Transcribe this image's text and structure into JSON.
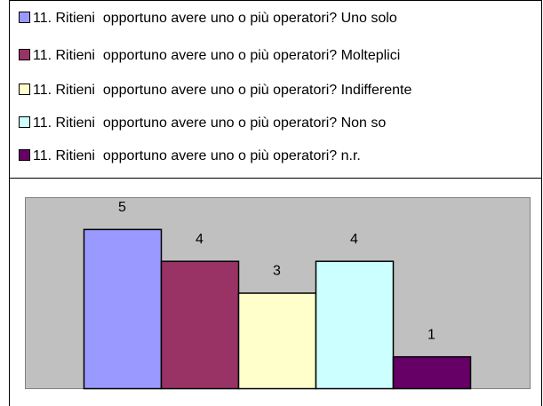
{
  "chart_data": {
    "type": "bar",
    "series": [
      {
        "name": "11. Ritieni  opportuno avere uno o più operatori? Uno solo",
        "color": "#9999ff",
        "values": [
          5
        ]
      },
      {
        "name": "11. Ritieni  opportuno avere uno o più operatori? Molteplici",
        "color": "#993366",
        "values": [
          4
        ]
      },
      {
        "name": "11. Ritieni  opportuno avere uno o più operatori? Indifferente",
        "color": "#ffffcc",
        "values": [
          3
        ]
      },
      {
        "name": "11. Ritieni  opportuno avere uno o più operatori? Non so",
        "color": "#ccffff",
        "values": [
          4
        ]
      },
      {
        "name": "11. Ritieni  opportuno avere uno o più operatori? n.r.",
        "color": "#660066",
        "values": [
          1
        ]
      }
    ],
    "ylim": [
      0,
      6
    ]
  }
}
